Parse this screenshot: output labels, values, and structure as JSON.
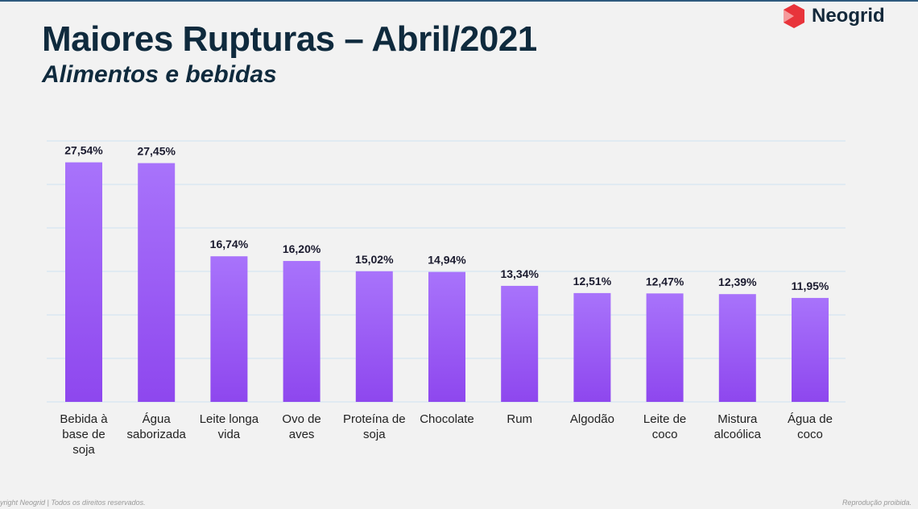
{
  "header": {
    "title": "Maiores Rupturas – Abril/2021",
    "subtitle": "Alimentos e bebidas"
  },
  "logo": {
    "text": "Neogrid",
    "color": "#e8343b"
  },
  "footer": {
    "left": "yright Neogrid | Todos os direitos reservados.",
    "right": "Reprodução proibida."
  },
  "chart_data": {
    "type": "bar",
    "categories": [
      "Bebida à base de soja",
      "Água saborizada",
      "Leite longa vida",
      "Ovo de aves",
      "Proteína de soja",
      "Chocolate",
      "Rum",
      "Algodão",
      "Leite de coco",
      "Mistura alcoólica",
      "Água de coco"
    ],
    "category_lines": [
      [
        "Bebida à",
        "base de",
        "soja"
      ],
      [
        "Água",
        "saborizada"
      ],
      [
        "Leite longa",
        "vida"
      ],
      [
        "Ovo de",
        "aves"
      ],
      [
        "Proteína de",
        "soja"
      ],
      [
        "Chocolate"
      ],
      [
        "Rum"
      ],
      [
        "Algodão"
      ],
      [
        "Leite de",
        "coco"
      ],
      [
        "Mistura",
        "alcoólica"
      ],
      [
        "Água de",
        "coco"
      ]
    ],
    "values": [
      27.54,
      27.45,
      16.74,
      16.2,
      15.02,
      14.94,
      13.34,
      12.51,
      12.47,
      12.39,
      11.95
    ],
    "data_labels": [
      "27,54%",
      "27,45%",
      "16,74%",
      "16,20%",
      "15,02%",
      "14,94%",
      "13,34%",
      "12,51%",
      "12,47%",
      "12,39%",
      "11,95%"
    ],
    "ylim": [
      0,
      30
    ],
    "grid": true,
    "bar_color_top": "#a873fb",
    "bar_color_bottom": "#8e47ee",
    "grid_color": "#cfe3f3"
  }
}
